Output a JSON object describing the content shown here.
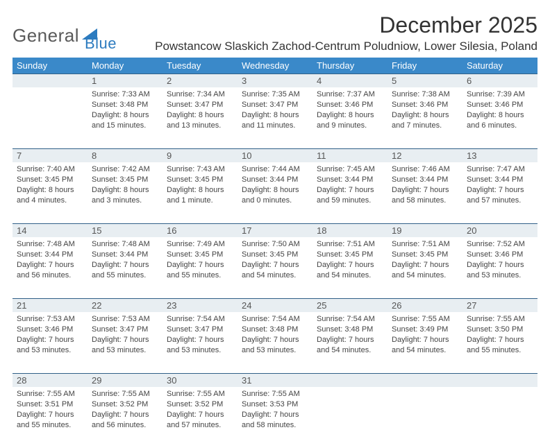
{
  "logo": {
    "text1": "General",
    "text2": "Blue"
  },
  "title": "December 2025",
  "location": "Powstancow Slaskich Zachod-Centrum Poludniow, Lower Silesia, Poland",
  "colors": {
    "header_bg": "#3a89c9",
    "num_row_bg": "#e8eef2",
    "num_row_border": "#2f5f87",
    "text": "#444"
  },
  "day_names": [
    "Sunday",
    "Monday",
    "Tuesday",
    "Wednesday",
    "Thursday",
    "Friday",
    "Saturday"
  ],
  "weeks": [
    {
      "nums": [
        "",
        "1",
        "2",
        "3",
        "4",
        "5",
        "6"
      ],
      "cells": [
        [],
        [
          "Sunrise: 7:33 AM",
          "Sunset: 3:48 PM",
          "Daylight: 8 hours",
          "and 15 minutes."
        ],
        [
          "Sunrise: 7:34 AM",
          "Sunset: 3:47 PM",
          "Daylight: 8 hours",
          "and 13 minutes."
        ],
        [
          "Sunrise: 7:35 AM",
          "Sunset: 3:47 PM",
          "Daylight: 8 hours",
          "and 11 minutes."
        ],
        [
          "Sunrise: 7:37 AM",
          "Sunset: 3:46 PM",
          "Daylight: 8 hours",
          "and 9 minutes."
        ],
        [
          "Sunrise: 7:38 AM",
          "Sunset: 3:46 PM",
          "Daylight: 8 hours",
          "and 7 minutes."
        ],
        [
          "Sunrise: 7:39 AM",
          "Sunset: 3:46 PM",
          "Daylight: 8 hours",
          "and 6 minutes."
        ]
      ]
    },
    {
      "nums": [
        "7",
        "8",
        "9",
        "10",
        "11",
        "12",
        "13"
      ],
      "cells": [
        [
          "Sunrise: 7:40 AM",
          "Sunset: 3:45 PM",
          "Daylight: 8 hours",
          "and 4 minutes."
        ],
        [
          "Sunrise: 7:42 AM",
          "Sunset: 3:45 PM",
          "Daylight: 8 hours",
          "and 3 minutes."
        ],
        [
          "Sunrise: 7:43 AM",
          "Sunset: 3:45 PM",
          "Daylight: 8 hours",
          "and 1 minute."
        ],
        [
          "Sunrise: 7:44 AM",
          "Sunset: 3:44 PM",
          "Daylight: 8 hours",
          "and 0 minutes."
        ],
        [
          "Sunrise: 7:45 AM",
          "Sunset: 3:44 PM",
          "Daylight: 7 hours",
          "and 59 minutes."
        ],
        [
          "Sunrise: 7:46 AM",
          "Sunset: 3:44 PM",
          "Daylight: 7 hours",
          "and 58 minutes."
        ],
        [
          "Sunrise: 7:47 AM",
          "Sunset: 3:44 PM",
          "Daylight: 7 hours",
          "and 57 minutes."
        ]
      ]
    },
    {
      "nums": [
        "14",
        "15",
        "16",
        "17",
        "18",
        "19",
        "20"
      ],
      "cells": [
        [
          "Sunrise: 7:48 AM",
          "Sunset: 3:44 PM",
          "Daylight: 7 hours",
          "and 56 minutes."
        ],
        [
          "Sunrise: 7:48 AM",
          "Sunset: 3:44 PM",
          "Daylight: 7 hours",
          "and 55 minutes."
        ],
        [
          "Sunrise: 7:49 AM",
          "Sunset: 3:45 PM",
          "Daylight: 7 hours",
          "and 55 minutes."
        ],
        [
          "Sunrise: 7:50 AM",
          "Sunset: 3:45 PM",
          "Daylight: 7 hours",
          "and 54 minutes."
        ],
        [
          "Sunrise: 7:51 AM",
          "Sunset: 3:45 PM",
          "Daylight: 7 hours",
          "and 54 minutes."
        ],
        [
          "Sunrise: 7:51 AM",
          "Sunset: 3:45 PM",
          "Daylight: 7 hours",
          "and 54 minutes."
        ],
        [
          "Sunrise: 7:52 AM",
          "Sunset: 3:46 PM",
          "Daylight: 7 hours",
          "and 53 minutes."
        ]
      ]
    },
    {
      "nums": [
        "21",
        "22",
        "23",
        "24",
        "25",
        "26",
        "27"
      ],
      "cells": [
        [
          "Sunrise: 7:53 AM",
          "Sunset: 3:46 PM",
          "Daylight: 7 hours",
          "and 53 minutes."
        ],
        [
          "Sunrise: 7:53 AM",
          "Sunset: 3:47 PM",
          "Daylight: 7 hours",
          "and 53 minutes."
        ],
        [
          "Sunrise: 7:54 AM",
          "Sunset: 3:47 PM",
          "Daylight: 7 hours",
          "and 53 minutes."
        ],
        [
          "Sunrise: 7:54 AM",
          "Sunset: 3:48 PM",
          "Daylight: 7 hours",
          "and 53 minutes."
        ],
        [
          "Sunrise: 7:54 AM",
          "Sunset: 3:48 PM",
          "Daylight: 7 hours",
          "and 54 minutes."
        ],
        [
          "Sunrise: 7:55 AM",
          "Sunset: 3:49 PM",
          "Daylight: 7 hours",
          "and 54 minutes."
        ],
        [
          "Sunrise: 7:55 AM",
          "Sunset: 3:50 PM",
          "Daylight: 7 hours",
          "and 55 minutes."
        ]
      ]
    },
    {
      "nums": [
        "28",
        "29",
        "30",
        "31",
        "",
        "",
        ""
      ],
      "cells": [
        [
          "Sunrise: 7:55 AM",
          "Sunset: 3:51 PM",
          "Daylight: 7 hours",
          "and 55 minutes."
        ],
        [
          "Sunrise: 7:55 AM",
          "Sunset: 3:52 PM",
          "Daylight: 7 hours",
          "and 56 minutes."
        ],
        [
          "Sunrise: 7:55 AM",
          "Sunset: 3:52 PM",
          "Daylight: 7 hours",
          "and 57 minutes."
        ],
        [
          "Sunrise: 7:55 AM",
          "Sunset: 3:53 PM",
          "Daylight: 7 hours",
          "and 58 minutes."
        ],
        [],
        [],
        []
      ]
    }
  ]
}
